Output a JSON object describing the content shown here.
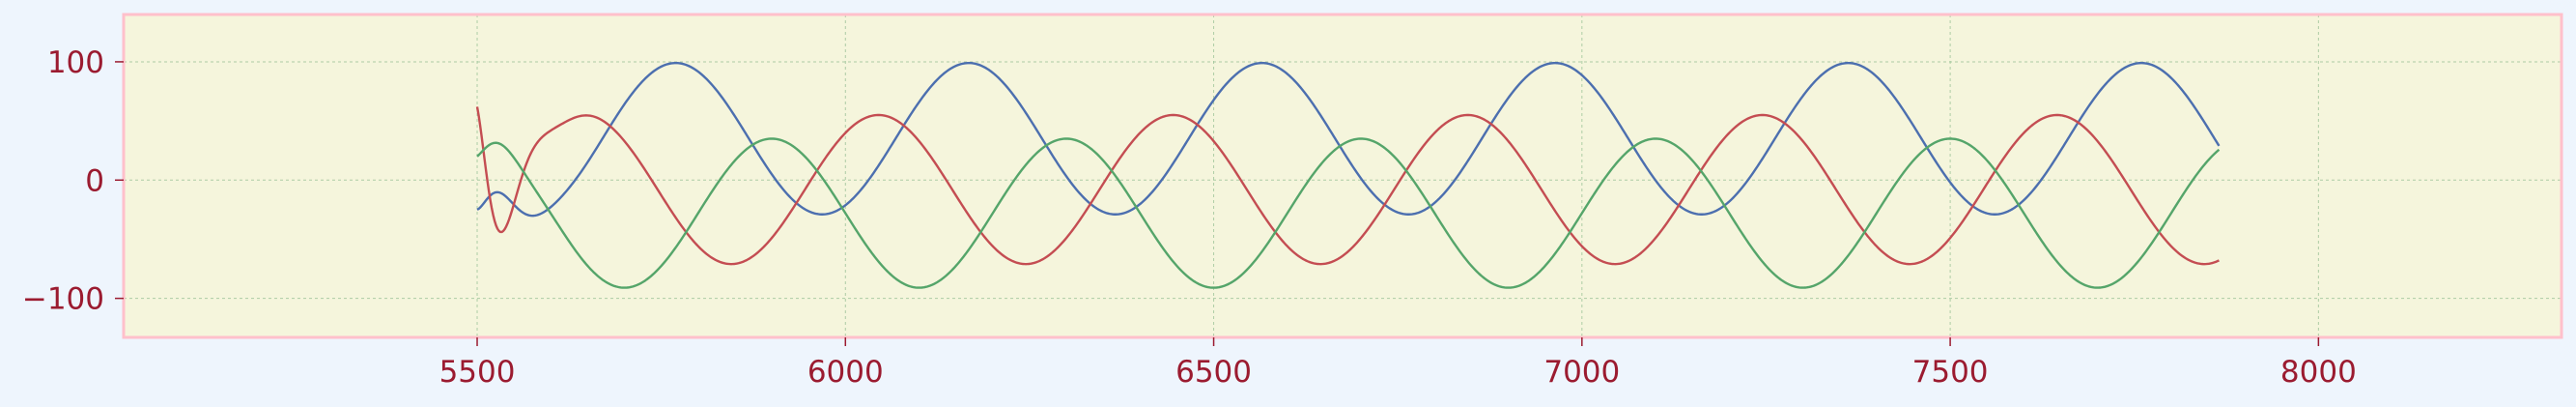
{
  "chart_data": {
    "type": "line",
    "title": "",
    "xlabel": "",
    "ylabel": "",
    "xlim": [
      5020,
      8330
    ],
    "ylim": [
      -133,
      140
    ],
    "x_ticks": [
      5500,
      6000,
      6500,
      7000,
      7500,
      8000
    ],
    "y_ticks": [
      100,
      0,
      -100
    ],
    "x_tick_labels": [
      "5500",
      "6000",
      "6500",
      "7000",
      "7500",
      "8000"
    ],
    "y_tick_labels": [
      "100",
      "0",
      "−100"
    ],
    "grid": true,
    "x_start": 5500,
    "x_end": 7865,
    "series": [
      {
        "color": "#4c6faf",
        "formula": "offset + amplitude*sin(2*pi*(x - phase_x)/period), with a short damped start",
        "amplitude": 64,
        "offset": 35,
        "period": 398,
        "phase_x": 5670,
        "start_value": -25
      },
      {
        "color": "#c44d52",
        "amplitude": 63,
        "offset": -8,
        "period": 400,
        "phase_x": 5545,
        "start_value": 62
      },
      {
        "color": "#55a56a",
        "amplitude": 63,
        "offset": -28,
        "period": 400,
        "phase_x": 5800,
        "start_value": 20
      }
    ],
    "colors": {
      "plot_background": "#f5f5dc",
      "frame": "#ffc0cb",
      "tick_label": "#9b1b30",
      "grid": "#8fbc8f",
      "page_background": "#eef5fd"
    }
  }
}
